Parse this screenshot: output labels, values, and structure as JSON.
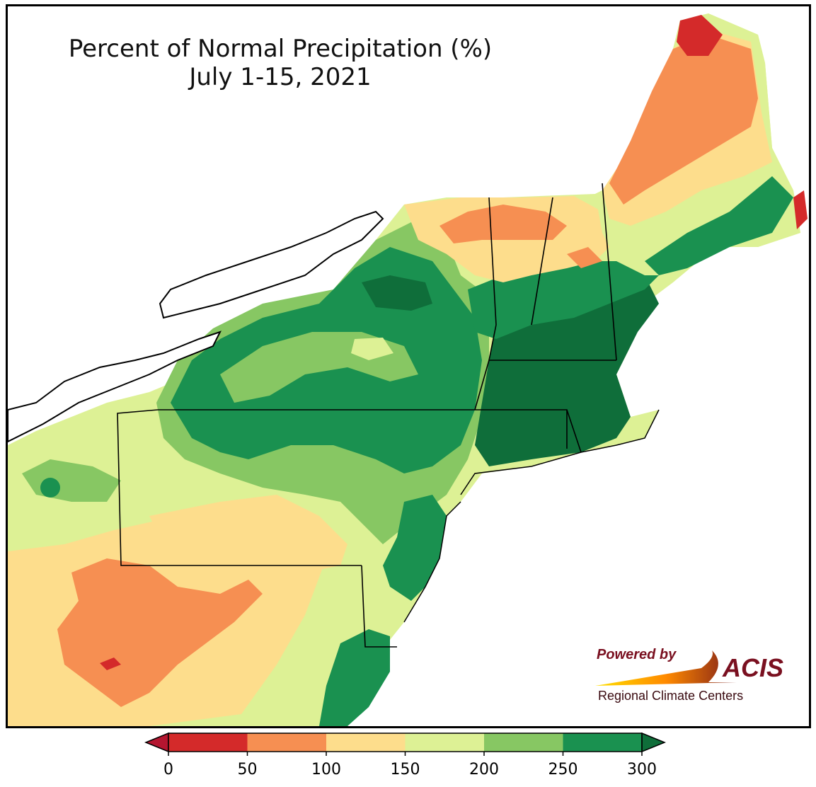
{
  "title": "Percent of Normal Precipitation (%)",
  "subtitle": "July 1-15, 2021",
  "logo": {
    "powered_by": "Powered by",
    "brand": "ACIS",
    "tagline": "Regional Climate Centers"
  },
  "legend": {
    "bins": [
      {
        "min": 0,
        "max": 50,
        "color": "#d42a2a"
      },
      {
        "min": 50,
        "max": 100,
        "color": "#f68f52"
      },
      {
        "min": 100,
        "max": 150,
        "color": "#fddd8c"
      },
      {
        "min": 150,
        "max": 200,
        "color": "#ddf195"
      },
      {
        "min": 200,
        "max": 250,
        "color": "#87c763"
      },
      {
        "min": 250,
        "max": 300,
        "color": "#1a9150"
      }
    ],
    "under_color": "#b41630",
    "over_color": "#0f6e3a",
    "ticks": [
      "0",
      "50",
      "100",
      "150",
      "200",
      "250",
      "300"
    ]
  }
}
